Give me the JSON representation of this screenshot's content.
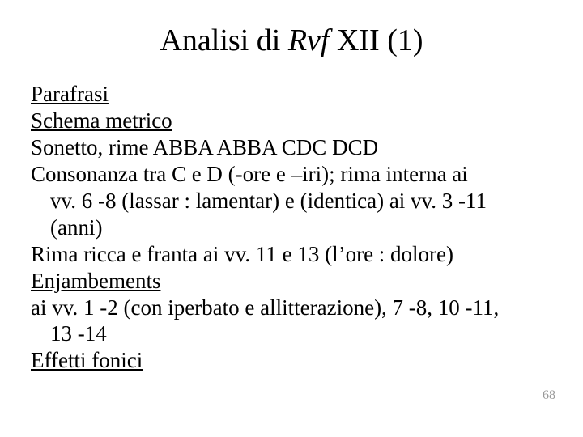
{
  "title": {
    "prefix": "Analisi di ",
    "italic": "Rvf ",
    "suffix": "XII (1)",
    "fontsize": 38,
    "color": "#000000"
  },
  "body": {
    "fontsize": 27,
    "color": "#000000",
    "lines": {
      "parafrasi": "Parafrasi",
      "schema_metrico": "Schema metrico",
      "sonetto": "Sonetto, rime ABBA ABBA CDC DCD",
      "consonanza_l1": "Consonanza tra C e D (-ore e –iri); rima interna ai",
      "consonanza_l2": "vv. 6 -8  (lassar : lamentar) e (identica) ai vv. 3 -11",
      "consonanza_l3": "(anni)",
      "rima_ricca": "Rima ricca e franta ai vv. 11 e 13 (l’ore : dolore)",
      "enjambements": "Enjambements",
      "enj_l1": "ai vv. 1 -2 (con iperbato e allitterazione), 7 -8, 10 -11,",
      "enj_l2": "13 -14",
      "effetti": "Effetti fonici"
    }
  },
  "pagenum": {
    "value": "68",
    "fontsize": 16,
    "color": "#999999"
  },
  "background_color": "#ffffff"
}
